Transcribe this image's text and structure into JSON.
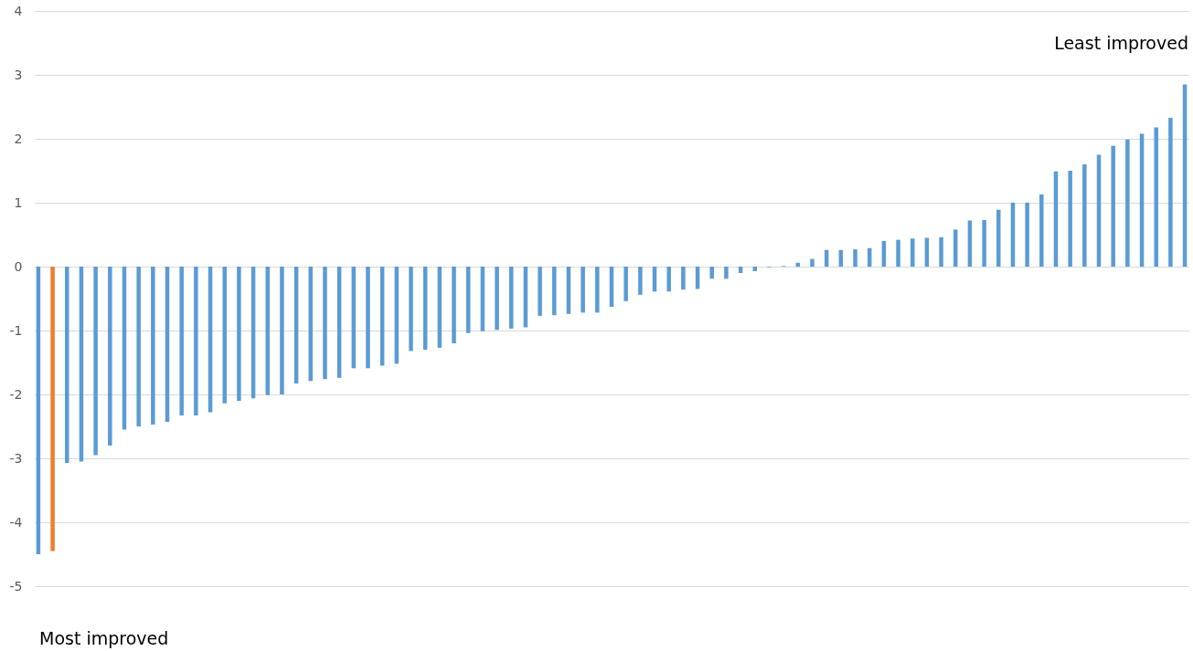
{
  "chart_data": {
    "type": "bar",
    "categories": [
      null,
      null,
      null,
      null,
      null,
      null,
      null,
      null,
      null,
      null,
      null,
      null,
      null,
      null,
      null,
      null,
      null,
      null,
      null,
      null,
      null,
      null,
      null,
      null,
      null,
      null,
      null,
      null,
      null,
      null,
      null,
      null,
      null,
      null,
      null,
      null,
      null,
      null,
      null,
      null,
      null,
      null,
      null,
      null,
      null,
      null,
      null,
      null,
      null,
      null,
      null,
      null,
      null,
      null,
      null,
      null,
      null,
      null,
      null,
      null,
      null,
      null,
      null,
      null,
      null,
      null,
      null,
      null,
      null,
      null,
      null,
      null,
      null,
      null,
      null,
      null,
      null,
      null,
      null,
      null,
      null
    ],
    "values": [
      -4.5,
      -4.45,
      -3.07,
      -3.05,
      -2.95,
      -2.8,
      -2.55,
      -2.5,
      -2.47,
      -2.43,
      -2.33,
      -2.33,
      -2.28,
      -2.14,
      -2.1,
      -2.06,
      -2.01,
      -2.0,
      -1.83,
      -1.79,
      -1.76,
      -1.74,
      -1.59,
      -1.59,
      -1.55,
      -1.52,
      -1.32,
      -1.3,
      -1.27,
      -1.2,
      -1.04,
      -1.01,
      -0.99,
      -0.97,
      -0.95,
      -0.77,
      -0.76,
      -0.74,
      -0.72,
      -0.72,
      -0.63,
      -0.54,
      -0.44,
      -0.39,
      -0.39,
      -0.36,
      -0.35,
      -0.19,
      -0.19,
      -0.1,
      -0.07,
      -0.01,
      0.01,
      0.06,
      0.12,
      0.26,
      0.26,
      0.27,
      0.29,
      0.4,
      0.42,
      0.44,
      0.45,
      0.46,
      0.58,
      0.72,
      0.73,
      0.89,
      1.0,
      1.0,
      1.13,
      1.49,
      1.5,
      1.6,
      1.75,
      1.89,
      1.99,
      2.08,
      2.18,
      2.33,
      2.85
    ],
    "colors": [
      "#5b9bd5",
      "#ed7d31",
      "#5b9bd5",
      "#5b9bd5",
      "#5b9bd5",
      "#5b9bd5",
      "#5b9bd5",
      "#5b9bd5",
      "#5b9bd5",
      "#5b9bd5",
      "#5b9bd5",
      "#5b9bd5",
      "#5b9bd5",
      "#5b9bd5",
      "#5b9bd5",
      "#5b9bd5",
      "#5b9bd5",
      "#5b9bd5",
      "#5b9bd5",
      "#5b9bd5",
      "#5b9bd5",
      "#5b9bd5",
      "#5b9bd5",
      "#5b9bd5",
      "#5b9bd5",
      "#5b9bd5",
      "#5b9bd5",
      "#5b9bd5",
      "#5b9bd5",
      "#5b9bd5",
      "#5b9bd5",
      "#5b9bd5",
      "#5b9bd5",
      "#5b9bd5",
      "#5b9bd5",
      "#5b9bd5",
      "#5b9bd5",
      "#5b9bd5",
      "#5b9bd5",
      "#5b9bd5",
      "#5b9bd5",
      "#5b9bd5",
      "#5b9bd5",
      "#5b9bd5",
      "#5b9bd5",
      "#5b9bd5",
      "#5b9bd5",
      "#5b9bd5",
      "#5b9bd5",
      "#5b9bd5",
      "#5b9bd5",
      "#5b9bd5",
      "#5b9bd5",
      "#5b9bd5",
      "#5b9bd5",
      "#5b9bd5",
      "#5b9bd5",
      "#5b9bd5",
      "#5b9bd5",
      "#5b9bd5",
      "#5b9bd5",
      "#5b9bd5",
      "#5b9bd5",
      "#5b9bd5",
      "#5b9bd5",
      "#5b9bd5",
      "#5b9bd5",
      "#5b9bd5",
      "#5b9bd5",
      "#5b9bd5",
      "#5b9bd5",
      "#5b9bd5",
      "#5b9bd5",
      "#5b9bd5",
      "#5b9bd5",
      "#5b9bd5",
      "#5b9bd5",
      "#5b9bd5",
      "#5b9bd5",
      "#5b9bd5",
      "#5b9bd5"
    ],
    "ylim": [
      -5,
      4
    ],
    "yticks": [
      -5,
      -4,
      -3,
      -2,
      -1,
      0,
      1,
      2,
      3,
      4
    ],
    "grid": "y",
    "annotations": [
      "Least improved",
      "Most improved"
    ]
  }
}
